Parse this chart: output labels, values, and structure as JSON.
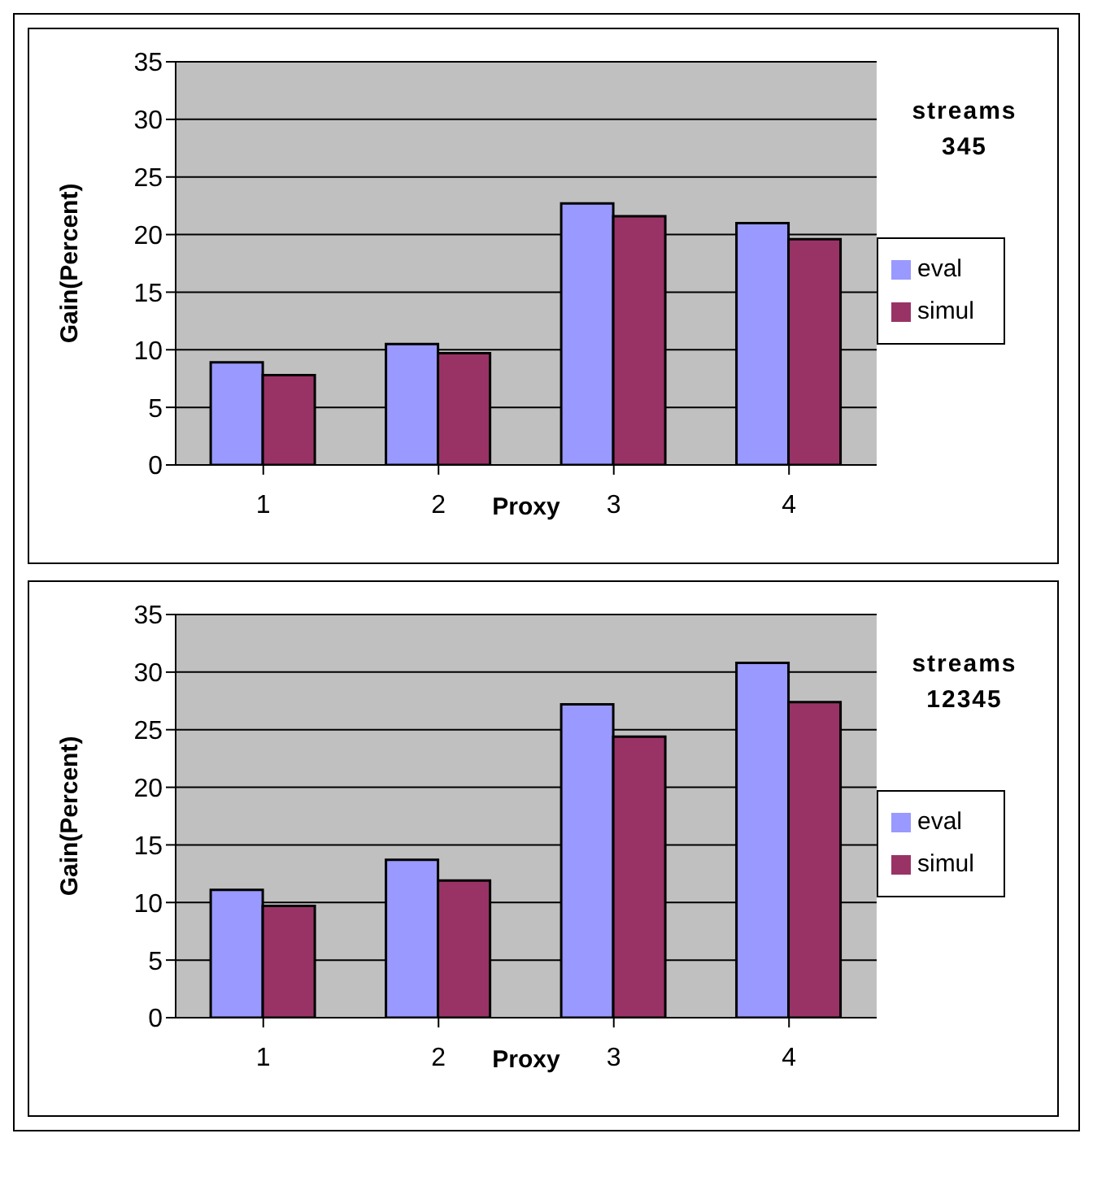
{
  "chart_data": [
    {
      "type": "bar",
      "annotations": [
        "streams 345"
      ],
      "xlabel": "Proxy",
      "ylabel": "Gain(Percent)",
      "categories": [
        "1",
        "2",
        "3",
        "4"
      ],
      "series": [
        {
          "name": "eval",
          "color": "#9999ff",
          "values": [
            8.9,
            10.5,
            22.7,
            21.0
          ]
        },
        {
          "name": "simul",
          "color": "#993366",
          "values": [
            7.8,
            9.7,
            21.6,
            19.6
          ]
        }
      ],
      "ylim": [
        0,
        35
      ],
      "yticks": [
        0,
        5,
        10,
        15,
        20,
        25,
        30,
        35
      ],
      "grid": "y",
      "legend": "right"
    },
    {
      "type": "bar",
      "annotations": [
        "streams 12345"
      ],
      "xlabel": "Proxy",
      "ylabel": "Gain(Percent)",
      "categories": [
        "1",
        "2",
        "3",
        "4"
      ],
      "series": [
        {
          "name": "eval",
          "color": "#9999ff",
          "values": [
            11.1,
            13.7,
            27.2,
            30.8
          ]
        },
        {
          "name": "simul",
          "color": "#993366",
          "values": [
            9.7,
            11.9,
            24.4,
            27.4
          ]
        }
      ],
      "ylim": [
        0,
        35
      ],
      "yticks": [
        0,
        5,
        10,
        15,
        20,
        25,
        30,
        35
      ],
      "grid": "y",
      "legend": "right"
    }
  ]
}
